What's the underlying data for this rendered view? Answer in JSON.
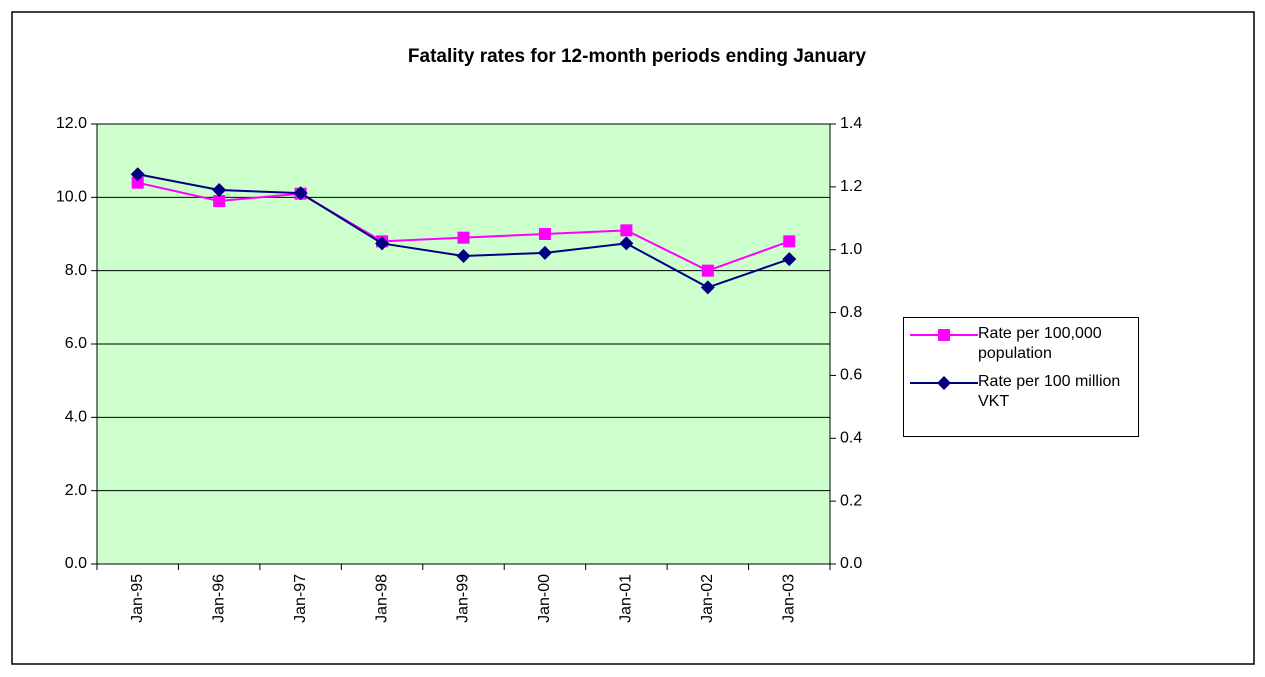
{
  "chart_data": {
    "type": "line",
    "title": "Fatality rates for 12-month periods ending January",
    "categories": [
      "Jan-95",
      "Jan-96",
      "Jan-97",
      "Jan-98",
      "Jan-99",
      "Jan-00",
      "Jan-01",
      "Jan-02",
      "Jan-03"
    ],
    "series": [
      {
        "name": "Rate per 100,000 population",
        "color": "#ff00ff",
        "marker": "square",
        "values": [
          10.4,
          9.9,
          10.1,
          8.8,
          8.9,
          9.0,
          9.1,
          8.0,
          8.8
        ]
      },
      {
        "name": "Rate per 100 million VKT",
        "color": "#000080",
        "marker": "diamond",
        "axis": "y2",
        "values": [
          1.24,
          1.19,
          1.18,
          1.02,
          0.98,
          0.99,
          1.02,
          0.88,
          0.97
        ]
      }
    ],
    "ylim": [
      0,
      12
    ],
    "yticks": [
      {
        "value": 0,
        "label": "0.0"
      },
      {
        "value": 2,
        "label": "2.0"
      },
      {
        "value": 4,
        "label": "4.0"
      },
      {
        "value": 6,
        "label": "6.0"
      },
      {
        "value": 8,
        "label": "8.0"
      },
      {
        "value": 10,
        "label": "10.0"
      },
      {
        "value": 12,
        "label": "12.0"
      }
    ],
    "y2lim": [
      0,
      1.4
    ],
    "y2ticks": [
      {
        "value": 0,
        "label": "0.0"
      },
      0.2,
      0.4,
      0.6,
      0.8,
      {
        "value": 1,
        "label": "1.0"
      },
      1.2,
      1.4
    ],
    "grid": true,
    "legend": "right",
    "background": "#ccffcc"
  }
}
